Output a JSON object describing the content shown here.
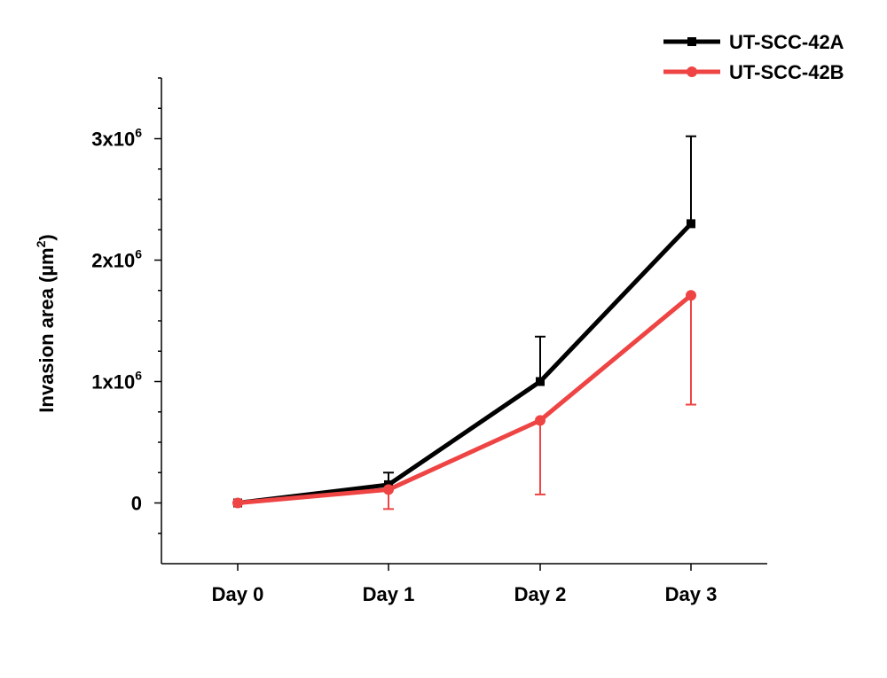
{
  "chart_data": {
    "type": "line",
    "title": "",
    "xlabel": "",
    "ylabel": "Invasion area (µm²)",
    "ylabel_parts": {
      "base": "Invasion area (µm",
      "sup": "2",
      "tail": ")"
    },
    "categories": [
      "Day 0",
      "Day 1",
      "Day 2",
      "Day 3"
    ],
    "ylim": [
      -500000,
      3500000
    ],
    "yticks": [
      {
        "value": 0,
        "base": "0",
        "sup": ""
      },
      {
        "value": 1000000,
        "base": "1x10",
        "sup": "6"
      },
      {
        "value": 2000000,
        "base": "2x10",
        "sup": "6"
      },
      {
        "value": 3000000,
        "base": "3x10",
        "sup": "6"
      }
    ],
    "yminor_ticks": [
      -250000,
      250000,
      500000,
      750000,
      1250000,
      1500000,
      1750000,
      2250000,
      2500000,
      2750000,
      3250000,
      3500000
    ],
    "legend_position": "top-right",
    "series": [
      {
        "name": "UT-SCC-42A",
        "color": "#000000",
        "marker": "square",
        "values": [
          0,
          150000,
          1000000,
          2300000
        ],
        "error_upper": [
          0,
          100000,
          370000,
          720000
        ],
        "error_lower": [
          0,
          0,
          0,
          0
        ]
      },
      {
        "name": "UT-SCC-42B",
        "color": "#EE4444",
        "marker": "circle",
        "values": [
          0,
          110000,
          680000,
          1710000
        ],
        "error_upper": [
          0,
          0,
          0,
          0
        ],
        "error_lower": [
          0,
          160000,
          610000,
          900000
        ]
      }
    ]
  }
}
